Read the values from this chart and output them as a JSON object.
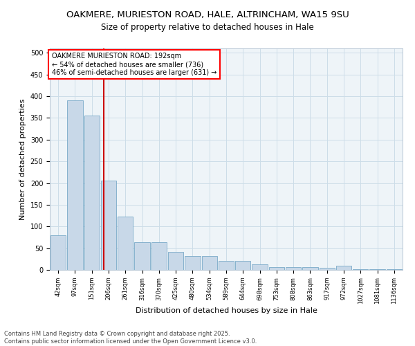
{
  "title_line1": "OAKMERE, MURIESTON ROAD, HALE, ALTRINCHAM, WA15 9SU",
  "title_line2": "Size of property relative to detached houses in Hale",
  "xlabel": "Distribution of detached houses by size in Hale",
  "ylabel": "Number of detached properties",
  "categories": [
    "42sqm",
    "97sqm",
    "151sqm",
    "206sqm",
    "261sqm",
    "316sqm",
    "370sqm",
    "425sqm",
    "480sqm",
    "534sqm",
    "589sqm",
    "644sqm",
    "698sqm",
    "753sqm",
    "808sqm",
    "863sqm",
    "917sqm",
    "972sqm",
    "1027sqm",
    "1081sqm",
    "1136sqm"
  ],
  "values": [
    80,
    390,
    355,
    205,
    123,
    63,
    63,
    42,
    32,
    32,
    20,
    20,
    13,
    7,
    7,
    7,
    5,
    10,
    2,
    1,
    1
  ],
  "bar_color": "#c8d8e8",
  "bar_edge_color": "#7aaac8",
  "redline_index": 2.72,
  "annotation_text": "OAKMERE MURIESTON ROAD: 192sqm\n← 54% of detached houses are smaller (736)\n46% of semi-detached houses are larger (631) →",
  "annotation_box_color": "white",
  "annotation_box_edge_color": "red",
  "redline_color": "#cc0000",
  "ylim": [
    0,
    510
  ],
  "yticks": [
    0,
    50,
    100,
    150,
    200,
    250,
    300,
    350,
    400,
    450,
    500
  ],
  "grid_color": "#ccdde8",
  "background_color": "white",
  "plot_bg_color": "#eef4f8",
  "footer_line1": "Contains HM Land Registry data © Crown copyright and database right 2025.",
  "footer_line2": "Contains public sector information licensed under the Open Government Licence v3.0.",
  "font_family": "DejaVu Sans",
  "title_fontsize": 9.5,
  "subtitle_fontsize": 8.5,
  "bar_width": 0.92
}
